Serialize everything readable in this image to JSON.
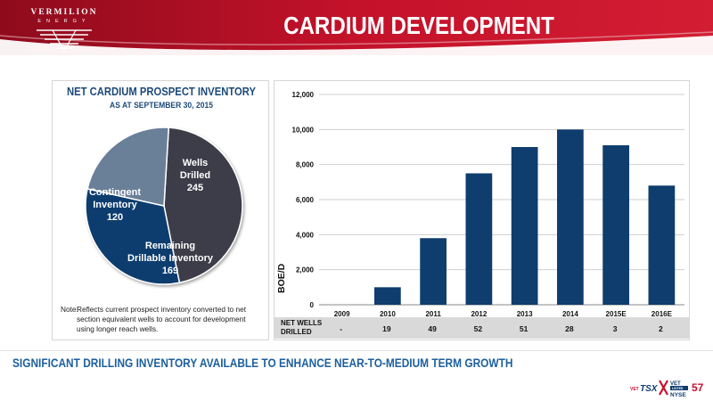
{
  "header": {
    "brand": "VERMILION",
    "brand_sub": "ENERGY",
    "title": "CARDIUM DEVELOPMENT"
  },
  "pie_panel": {
    "title": "NET CARDIUM PROSPECT INVENTORY",
    "subtitle": "AS AT SEPTEMBER 30, 2015",
    "slices": [
      {
        "line1": "Wells",
        "line2": "Drilled",
        "value": "245",
        "color": "#3d3d48"
      },
      {
        "line1": "Remaining",
        "line2": "Drillable Inventory",
        "value": "169",
        "color": "#0f3d6e"
      },
      {
        "line1": "Contingent",
        "line2": "Inventory",
        "value": "120",
        "color": "#6b7f98"
      }
    ],
    "note_key": "Note:",
    "note_text": "Reflects current prospect inventory converted to net section equivalent wells to account for development using longer reach wells."
  },
  "chart_data": {
    "type": "bar",
    "categories": [
      "2009",
      "2010",
      "2011",
      "2012",
      "2013",
      "2014",
      "2015E",
      "2016E"
    ],
    "values": [
      0,
      1000,
      3800,
      7500,
      9000,
      10000,
      9100,
      6800
    ],
    "ylabel": "BOE/D",
    "ylim": [
      0,
      12000
    ],
    "yticks": [
      "0",
      "2,000",
      "4,000",
      "6,000",
      "8,000",
      "10,000",
      "12,000"
    ],
    "grid": true,
    "bar_color": "#0f3d6e"
  },
  "wells_row": {
    "label_line1": "NET WELLS",
    "label_line2": "DRILLED",
    "values": [
      "-",
      "19",
      "49",
      "52",
      "51",
      "28",
      "3",
      "2"
    ]
  },
  "footer": {
    "tagline": "SIGNIFICANT DRILLING INVENTORY AVAILABLE TO ENHANCE NEAR-TO-MEDIUM TERM GROWTH",
    "ticker_left": "VET",
    "ticker_tsx": "TSX",
    "ticker_right_top": "VET",
    "ticker_right_mid": "LISTED",
    "ticker_right_bottom": "NYSE",
    "page_number": "57"
  }
}
